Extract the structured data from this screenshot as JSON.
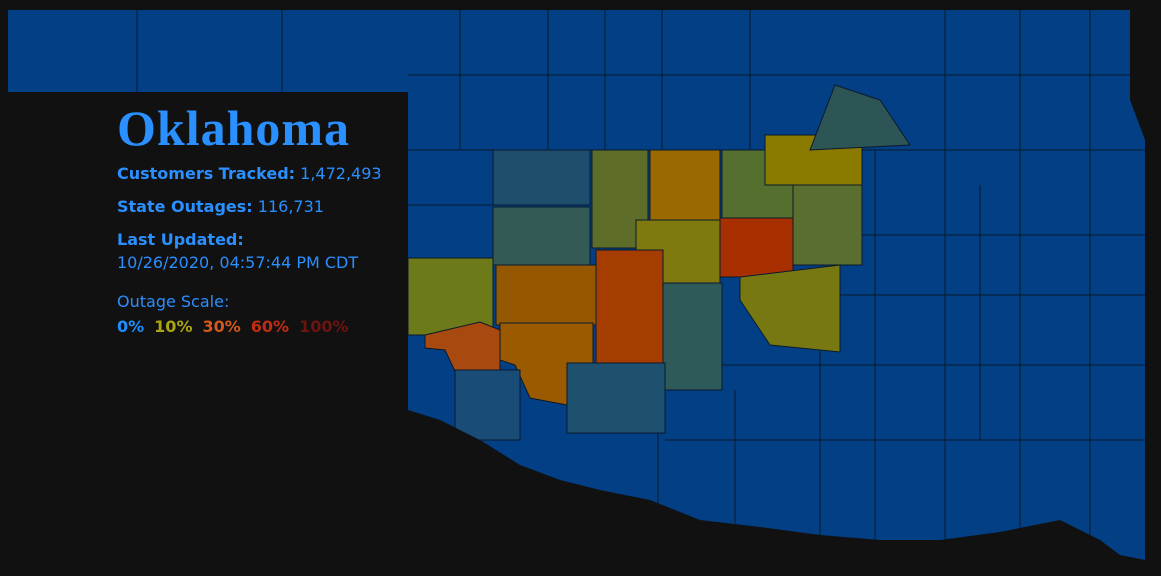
{
  "header": {
    "title": "Oklahoma"
  },
  "stats": [
    {
      "label": "Customers Tracked:",
      "value": "1,472,493"
    },
    {
      "label": "State Outages:",
      "value": "116,731"
    }
  ],
  "updated": {
    "label": "Last Updated:",
    "value": "10/26/2020, 04:57:44 PM CDT"
  },
  "scale": {
    "title": "Outage Scale:",
    "items": [
      {
        "label": "0%",
        "color": "#1e8fff"
      },
      {
        "label": "10%",
        "color": "#a9a612"
      },
      {
        "label": "30%",
        "color": "#d2581e"
      },
      {
        "label": "60%",
        "color": "#c02c12"
      },
      {
        "label": "100%",
        "color": "#6b1410"
      }
    ]
  }
}
